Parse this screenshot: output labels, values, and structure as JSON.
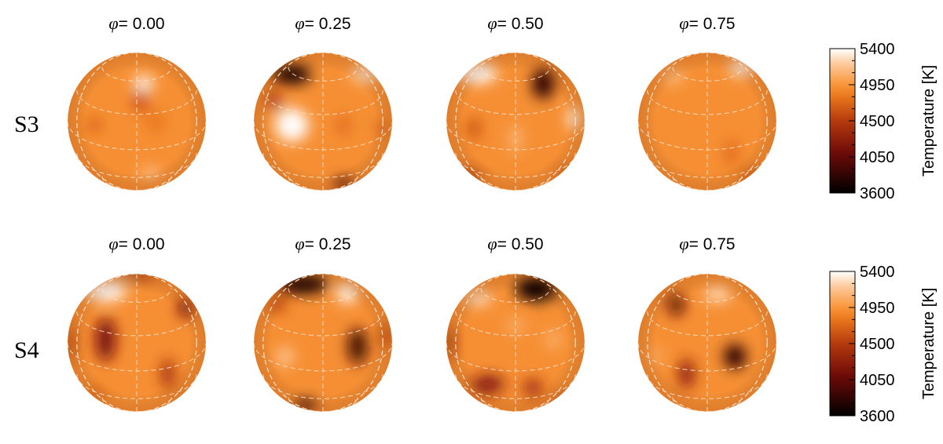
{
  "phase_symbol": "φ",
  "rows": [
    {
      "label": "S3",
      "panels": [
        {
          "phase": "= 0.00",
          "spots": [
            {
              "lon": 0.1,
              "lat": 0.55,
              "rx": 0.14,
              "ry": 0.11,
              "temp": 5400
            },
            {
              "lon": 0.05,
              "lat": 0.3,
              "rx": 0.1,
              "ry": 0.18,
              "temp": 4600
            },
            {
              "lon": 0.28,
              "lat": 0.0,
              "rx": 0.13,
              "ry": 0.16,
              "temp": 4800
            },
            {
              "lon": -0.62,
              "lat": -0.05,
              "rx": 0.12,
              "ry": 0.1,
              "temp": 4700
            },
            {
              "lon": 0.2,
              "lat": -0.75,
              "rx": 0.14,
              "ry": 0.08,
              "temp": 5200
            }
          ]
        },
        {
          "phase": "= 0.25",
          "spots": [
            {
              "lon": -0.45,
              "lat": 0.68,
              "rx": 0.28,
              "ry": 0.14,
              "temp": 3700
            },
            {
              "lon": -0.7,
              "lat": 0.3,
              "rx": 0.1,
              "ry": 0.14,
              "temp": 4400
            },
            {
              "lon": 0.62,
              "lat": 0.7,
              "rx": 0.2,
              "ry": 0.12,
              "temp": 5300
            },
            {
              "lon": -0.45,
              "lat": -0.05,
              "rx": 0.24,
              "ry": 0.24,
              "temp": 5400
            },
            {
              "lon": 0.3,
              "lat": -0.05,
              "rx": 0.1,
              "ry": 0.16,
              "temp": 4750
            },
            {
              "lon": 0.85,
              "lat": -0.1,
              "rx": 0.07,
              "ry": 0.1,
              "temp": 4600
            },
            {
              "lon": 0.3,
              "lat": -0.9,
              "rx": 0.14,
              "ry": 0.08,
              "temp": 3900
            }
          ]
        },
        {
          "phase": "= 0.50",
          "spots": [
            {
              "lon": -0.55,
              "lat": 0.7,
              "rx": 0.28,
              "ry": 0.14,
              "temp": 5400
            },
            {
              "lon": 0.4,
              "lat": 0.55,
              "rx": 0.16,
              "ry": 0.22,
              "temp": 3800
            },
            {
              "lon": 0.85,
              "lat": 0.05,
              "rx": 0.08,
              "ry": 0.16,
              "temp": 5400
            },
            {
              "lon": -0.6,
              "lat": -0.1,
              "rx": 0.08,
              "ry": 0.16,
              "temp": 4550
            },
            {
              "lon": 0.0,
              "lat": -0.25,
              "rx": 0.06,
              "ry": 0.2,
              "temp": 5200
            },
            {
              "lon": -0.7,
              "lat": -0.8,
              "rx": 0.2,
              "ry": 0.08,
              "temp": 4400
            },
            {
              "lon": 0.75,
              "lat": -0.78,
              "rx": 0.12,
              "ry": 0.07,
              "temp": 4500
            }
          ]
        },
        {
          "phase": "= 0.75",
          "spots": [
            {
              "lon": 0.5,
              "lat": 0.78,
              "rx": 0.18,
              "ry": 0.1,
              "temp": 5400
            },
            {
              "lon": -0.5,
              "lat": 0.65,
              "rx": 0.16,
              "ry": 0.1,
              "temp": 5150
            },
            {
              "lon": 0.35,
              "lat": -0.45,
              "rx": 0.1,
              "ry": 0.2,
              "temp": 4750
            },
            {
              "lon": 0.65,
              "lat": -0.8,
              "rx": 0.12,
              "ry": 0.07,
              "temp": 4500
            }
          ]
        }
      ]
    },
    {
      "label": "S4",
      "panels": [
        {
          "phase": "= 0.00",
          "spots": [
            {
              "lon": -0.45,
              "lat": 0.75,
              "rx": 0.3,
              "ry": 0.14,
              "temp": 5400
            },
            {
              "lon": 0.0,
              "lat": 0.98,
              "rx": 0.3,
              "ry": 0.04,
              "temp": 4100
            },
            {
              "lon": -0.45,
              "lat": 0.05,
              "rx": 0.14,
              "ry": 0.32,
              "temp": 4150
            },
            {
              "lon": 0.7,
              "lat": 0.5,
              "rx": 0.1,
              "ry": 0.14,
              "temp": 4100
            },
            {
              "lon": -0.95,
              "lat": 0.0,
              "rx": 0.05,
              "ry": 0.25,
              "temp": 4400
            },
            {
              "lon": 0.45,
              "lat": -0.45,
              "rx": 0.09,
              "ry": 0.22,
              "temp": 4350
            },
            {
              "lon": -0.6,
              "lat": -0.75,
              "rx": 0.1,
              "ry": 0.1,
              "temp": 4700
            }
          ]
        },
        {
          "phase": "= 0.25",
          "spots": [
            {
              "lon": -0.3,
              "lat": 0.85,
              "rx": 0.38,
              "ry": 0.14,
              "temp": 3700
            },
            {
              "lon": 0.35,
              "lat": 0.72,
              "rx": 0.14,
              "ry": 0.14,
              "temp": 5400
            },
            {
              "lon": -0.65,
              "lat": 0.55,
              "rx": 0.12,
              "ry": 0.1,
              "temp": 4500
            },
            {
              "lon": 0.5,
              "lat": -0.05,
              "rx": 0.14,
              "ry": 0.26,
              "temp": 3900
            },
            {
              "lon": 0.9,
              "lat": 0.1,
              "rx": 0.06,
              "ry": 0.18,
              "temp": 4400
            },
            {
              "lon": -0.55,
              "lat": -0.2,
              "rx": 0.12,
              "ry": 0.14,
              "temp": 5200
            },
            {
              "lon": -0.25,
              "lat": -0.9,
              "rx": 0.16,
              "ry": 0.08,
              "temp": 3800
            }
          ]
        },
        {
          "phase": "= 0.50",
          "spots": [
            {
              "lon": 0.3,
              "lat": 0.78,
              "rx": 0.3,
              "ry": 0.18,
              "temp": 3650
            },
            {
              "lon": -0.55,
              "lat": 0.65,
              "rx": 0.2,
              "ry": 0.1,
              "temp": 5300
            },
            {
              "lon": 0.0,
              "lat": 0.25,
              "rx": 0.12,
              "ry": 0.1,
              "temp": 5100
            },
            {
              "lon": -0.95,
              "lat": 0.0,
              "rx": 0.05,
              "ry": 0.22,
              "temp": 4200
            },
            {
              "lon": -0.4,
              "lat": -0.6,
              "rx": 0.24,
              "ry": 0.13,
              "temp": 4200
            },
            {
              "lon": 0.25,
              "lat": -0.65,
              "rx": 0.14,
              "ry": 0.12,
              "temp": 4350
            },
            {
              "lon": 0.75,
              "lat": -0.85,
              "rx": 0.12,
              "ry": 0.07,
              "temp": 4200
            },
            {
              "lon": 0.55,
              "lat": 0.05,
              "rx": 0.1,
              "ry": 0.14,
              "temp": 5100
            }
          ]
        },
        {
          "phase": "= 0.75",
          "spots": [
            {
              "lon": -0.45,
              "lat": 0.55,
              "rx": 0.12,
              "ry": 0.16,
              "temp": 4000
            },
            {
              "lon": 0.15,
              "lat": 0.7,
              "rx": 0.18,
              "ry": 0.1,
              "temp": 5300
            },
            {
              "lon": 0.9,
              "lat": 0.95,
              "rx": 0.1,
              "ry": 0.04,
              "temp": 3900
            },
            {
              "lon": 0.4,
              "lat": -0.2,
              "rx": 0.16,
              "ry": 0.18,
              "temp": 3800
            },
            {
              "lon": -0.3,
              "lat": -0.45,
              "rx": 0.12,
              "ry": 0.22,
              "temp": 4300
            },
            {
              "lon": -0.75,
              "lat": -0.2,
              "rx": 0.08,
              "ry": 0.12,
              "temp": 5100
            }
          ]
        }
      ]
    }
  ],
  "colorbar": {
    "title": "Temperature [K]",
    "min": 3600,
    "max": 5400,
    "ticks": [
      "5400",
      "4950",
      "4500",
      "4050",
      "3600"
    ],
    "stops": [
      {
        "t": 3600,
        "color": "#000000"
      },
      {
        "t": 4100,
        "color": "#6e0b08"
      },
      {
        "t": 4500,
        "color": "#b53a0e"
      },
      {
        "t": 4800,
        "color": "#e9761c"
      },
      {
        "t": 4950,
        "color": "#f9953a"
      },
      {
        "t": 5200,
        "color": "#fdc797"
      },
      {
        "t": 5400,
        "color": "#ffffff"
      }
    ],
    "background_temp": 4920
  }
}
